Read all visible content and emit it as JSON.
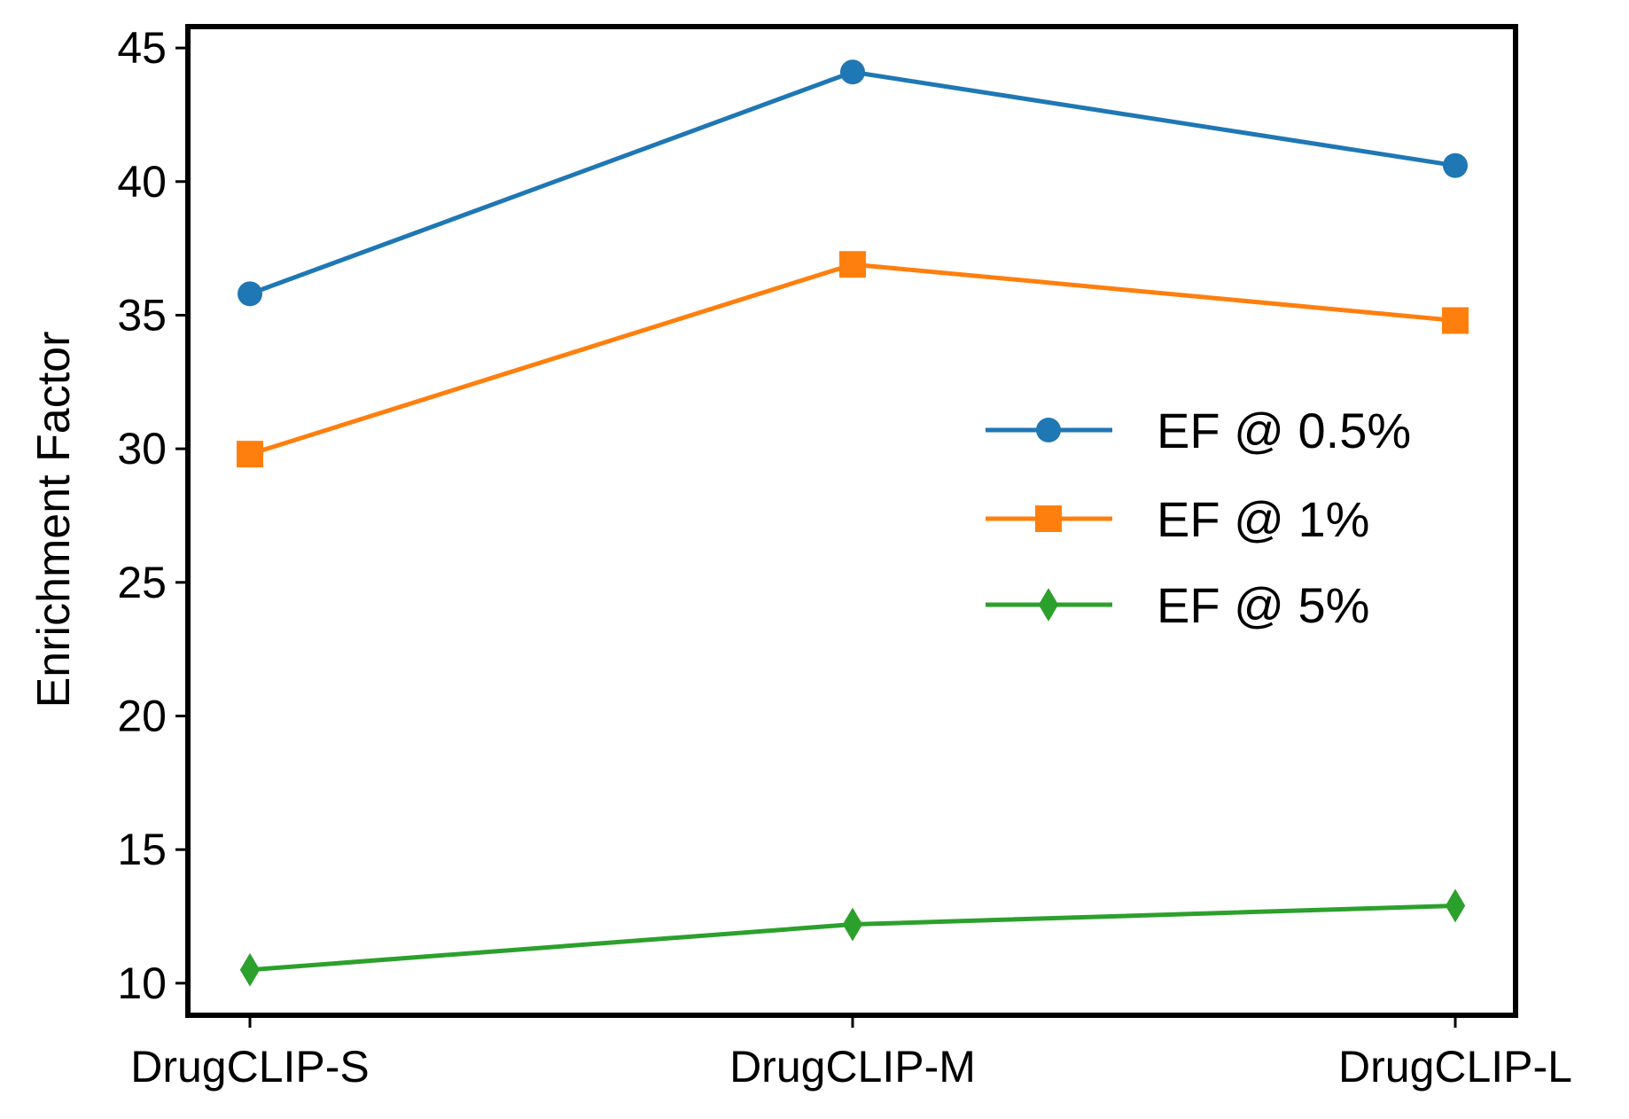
{
  "chart_data": {
    "type": "line",
    "categories": [
      "DrugCLIP-S",
      "DrugCLIP-M",
      "DrugCLIP-L"
    ],
    "series": [
      {
        "name": "EF @ 0.5%",
        "values": [
          35.8,
          44.1,
          40.6
        ],
        "color": "#1f77b4",
        "marker": "circle"
      },
      {
        "name": "EF @ 1%",
        "values": [
          29.8,
          36.9,
          34.8
        ],
        "color": "#ff7f0e",
        "marker": "square"
      },
      {
        "name": "EF @ 5%",
        "values": [
          10.5,
          12.2,
          12.9
        ],
        "color": "#2ca02c",
        "marker": "diamond"
      }
    ],
    "title": "",
    "xlabel": "",
    "ylabel": "Enrichment Factor",
    "yticks": [
      10,
      15,
      20,
      25,
      30,
      35,
      40,
      45
    ],
    "ylim": [
      8.8,
      45.8
    ],
    "grid": false,
    "legend_position": "center-right"
  }
}
